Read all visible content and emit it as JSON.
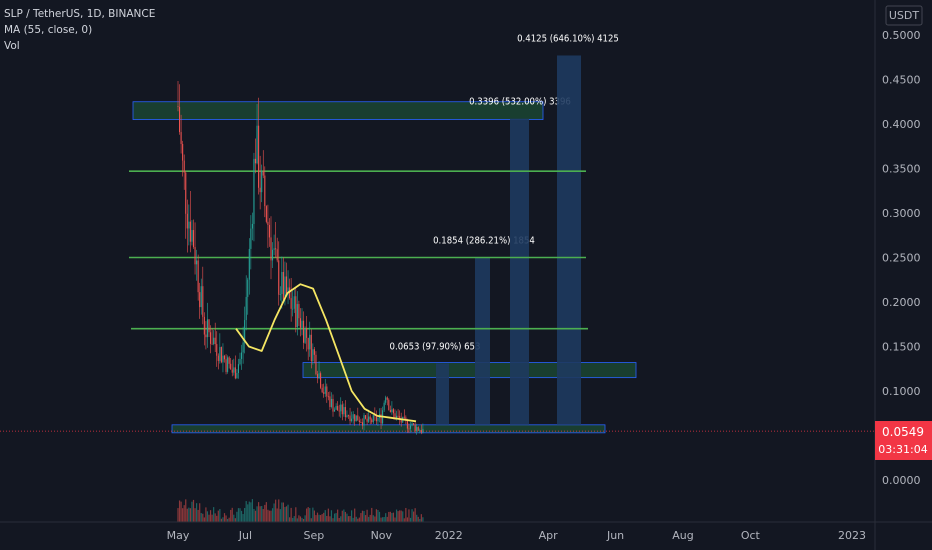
{
  "header": {
    "symbol_line": "SLP / TetherUS, 1D, BINANCE",
    "indicator_ma": "MA (55, close, 0)",
    "indicator_vol": "Vol"
  },
  "colors": {
    "background": "#131722",
    "up_candle": "#26a69a",
    "down_candle": "#ef5350",
    "level_line": "#4caf50",
    "zone_fill": "#1b4332",
    "target_bar": "#1e3a5f",
    "ma_line": "#f5e663",
    "price_tag": "#f23645"
  },
  "chart_data": {
    "type": "candlestick",
    "symbol": "SLP / TetherUS",
    "interval": "1D",
    "exchange": "BINANCE",
    "currency_label": "USDT",
    "y_axis": {
      "min": 0.0,
      "max": 0.5,
      "ticks": [
        "0.5000",
        "0.4500",
        "0.4000",
        "0.3500",
        "0.3000",
        "0.2500",
        "0.2000",
        "0.1500",
        "0.1000",
        "0.0549",
        "0.0000"
      ]
    },
    "x_axis": {
      "ticks": [
        "May",
        "Jul",
        "Sep",
        "Nov",
        "2022",
        "Apr",
        "Jun",
        "Aug",
        "Oct",
        "2023"
      ]
    },
    "last_price": "0.0549",
    "countdown": "03:31:04",
    "price_series": [
      {
        "date": "2021-05-01",
        "price": 0.42
      },
      {
        "date": "2021-05-05",
        "price": 0.35
      },
      {
        "date": "2021-05-10",
        "price": 0.3
      },
      {
        "date": "2021-05-15",
        "price": 0.27
      },
      {
        "date": "2021-05-20",
        "price": 0.22
      },
      {
        "date": "2021-05-25",
        "price": 0.17
      },
      {
        "date": "2021-06-01",
        "price": 0.16
      },
      {
        "date": "2021-06-10",
        "price": 0.14
      },
      {
        "date": "2021-06-20",
        "price": 0.12
      },
      {
        "date": "2021-06-28",
        "price": 0.14
      },
      {
        "date": "2021-07-05",
        "price": 0.26
      },
      {
        "date": "2021-07-10",
        "price": 0.38
      },
      {
        "date": "2021-07-15",
        "price": 0.33
      },
      {
        "date": "2021-07-20",
        "price": 0.3
      },
      {
        "date": "2021-07-25",
        "price": 0.26
      },
      {
        "date": "2021-08-01",
        "price": 0.22
      },
      {
        "date": "2021-08-10",
        "price": 0.2
      },
      {
        "date": "2021-08-20",
        "price": 0.18
      },
      {
        "date": "2021-09-01",
        "price": 0.14
      },
      {
        "date": "2021-09-10",
        "price": 0.1
      },
      {
        "date": "2021-09-20",
        "price": 0.08
      },
      {
        "date": "2021-10-01",
        "price": 0.075
      },
      {
        "date": "2021-10-10",
        "price": 0.07
      },
      {
        "date": "2021-10-20",
        "price": 0.065
      },
      {
        "date": "2021-11-01",
        "price": 0.07
      },
      {
        "date": "2021-11-05",
        "price": 0.1
      },
      {
        "date": "2021-11-10",
        "price": 0.075
      },
      {
        "date": "2021-11-20",
        "price": 0.065
      },
      {
        "date": "2021-12-01",
        "price": 0.06
      },
      {
        "date": "2021-12-10",
        "price": 0.0549
      }
    ],
    "levels": [
      0.347,
      0.25,
      0.17
    ],
    "zones": [
      {
        "low": 0.405,
        "high": 0.425
      },
      {
        "low": 0.115,
        "high": 0.132
      },
      {
        "low": 0.053,
        "high": 0.062
      }
    ],
    "targets": [
      {
        "label": "0.0653 (97.90%) 653",
        "top": 0.131,
        "base": 0.062
      },
      {
        "label": "0.1854 (286.21%) 1854",
        "top": 0.25,
        "base": 0.062
      },
      {
        "label": "0.3396 (532.00%) 3396",
        "top": 0.406,
        "base": 0.062
      },
      {
        "label": "0.4125 (646.10%) 4125",
        "top": 0.477,
        "base": 0.062
      }
    ],
    "ma_curve": [
      0.17,
      0.15,
      0.145,
      0.18,
      0.21,
      0.22,
      0.215,
      0.18,
      0.14,
      0.1,
      0.08,
      0.072,
      0.07,
      0.068,
      0.066
    ]
  }
}
